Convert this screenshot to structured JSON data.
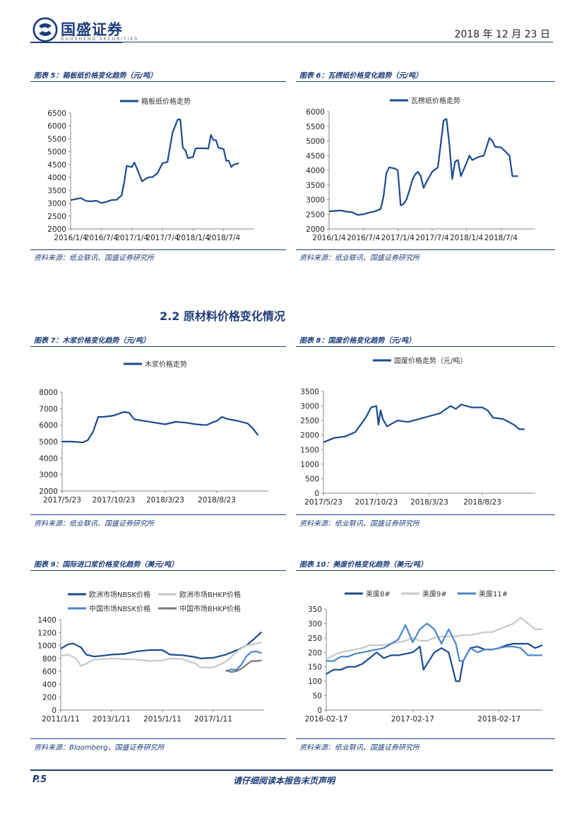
{
  "header": {
    "company": "国盛证券",
    "company_en": "GUOSHENG SECURITIES",
    "date": "2018 年 12 月 23 日"
  },
  "section_title": "2.2 原材料价格变化情况",
  "footer": {
    "page": "P.5",
    "note": "请仔细阅读本报告末页声明"
  },
  "colors": {
    "dark_blue": "#1a4b8f",
    "mid_blue": "#4a86c8",
    "light_gray": "#c8c8c8",
    "dark_gray": "#7a7a7a",
    "brand": "#1f3c7a"
  },
  "chart_data": [
    {
      "id": "c5",
      "type": "line",
      "caption": "图表 5：箱板纸价格变化趋势（元/吨）",
      "source": "资料来源：纸业联讯、国盛证券研究所",
      "ylim": [
        2000,
        6500
      ],
      "yticks": [
        2000,
        2500,
        3000,
        3500,
        4000,
        4500,
        5000,
        5500,
        6000,
        6500
      ],
      "xlim": [
        0,
        36
      ],
      "xtick_labels": [
        "2016/1/4",
        "2016/7/4",
        "2017/1/4",
        "2017/7/4",
        "2018/1/4",
        "2018/7/4"
      ],
      "xtick_pos": [
        0,
        6,
        12,
        18,
        24,
        30
      ],
      "series": [
        {
          "name": "箱板纸价格走势",
          "color": "#1a4b8f",
          "x": [
            0,
            2,
            3,
            4,
            5,
            6,
            7,
            8,
            9,
            10,
            10.5,
            11,
            12,
            12.5,
            13,
            14,
            15,
            15.5,
            16,
            17,
            18,
            19,
            20,
            21,
            21.5,
            22,
            22.5,
            23,
            24,
            24.5,
            25,
            26,
            27,
            27.5,
            28,
            28.5,
            29,
            30,
            30.5,
            31,
            31.5,
            32,
            33
          ],
          "y": [
            3120,
            3200,
            3090,
            3070,
            3100,
            3010,
            3050,
            3120,
            3130,
            3300,
            3800,
            4450,
            4400,
            4580,
            4350,
            3850,
            3980,
            4010,
            4010,
            4150,
            4550,
            4600,
            5750,
            6250,
            6250,
            5150,
            5050,
            4750,
            4790,
            5120,
            5130,
            5130,
            5120,
            5650,
            5450,
            5450,
            5150,
            5100,
            4650,
            4650,
            4400,
            4500,
            4550
          ]
        }
      ]
    },
    {
      "id": "c6",
      "type": "line",
      "caption": "图表 6：瓦楞纸价格变化趋势（元/吨）",
      "source": "资料来源：纸业联讯、国盛证券研究所",
      "ylim": [
        2000,
        6000
      ],
      "yticks": [
        2000,
        2500,
        3000,
        3500,
        4000,
        4500,
        5000,
        5500,
        6000
      ],
      "xlim": [
        0,
        36
      ],
      "xtick_labels": [
        "2016/1/4",
        "2016/7/4",
        "2017/1/4",
        "2017/7/4",
        "2018/1/4",
        "2018/7/4"
      ],
      "xtick_pos": [
        0,
        6,
        12,
        18,
        24,
        30
      ],
      "series": [
        {
          "name": "瓦楞纸价格走势",
          "color": "#1a4b8f",
          "x": [
            0,
            2,
            3,
            4,
            5,
            6,
            7,
            8,
            9,
            9.5,
            10,
            10.5,
            11,
            11.5,
            12,
            12.5,
            13,
            13.5,
            14,
            14.5,
            15,
            15.5,
            16,
            16.5,
            17,
            18,
            19,
            20,
            20.5,
            21,
            21.5,
            22,
            22.5,
            23,
            24,
            24.5,
            25,
            26,
            27,
            28,
            28.5,
            29,
            30,
            31,
            31.5,
            32,
            33
          ],
          "y": [
            2600,
            2630,
            2590,
            2570,
            2480,
            2500,
            2560,
            2600,
            2680,
            3100,
            3900,
            4100,
            4080,
            4060,
            4000,
            2800,
            2850,
            3000,
            3300,
            3650,
            3850,
            3950,
            3800,
            3400,
            3600,
            3950,
            4100,
            5700,
            5750,
            4900,
            3700,
            4300,
            4350,
            3800,
            4250,
            4500,
            4350,
            4450,
            4500,
            5100,
            5000,
            4800,
            4780,
            4600,
            4500,
            3800,
            3800
          ]
        }
      ]
    },
    {
      "id": "c7",
      "type": "line",
      "caption": "图表 7：木浆价格变化趋势（元/吨）",
      "source": "资料来源：纸业联讯、国盛证券研究所",
      "ylim": [
        2000,
        8000
      ],
      "yticks": [
        2000,
        3000,
        4000,
        5000,
        6000,
        7000,
        8000
      ],
      "xlim": [
        0,
        20
      ],
      "xtick_labels": [
        "2017/5/23",
        "2017/10/23",
        "2018/3/23",
        "2018/8/23"
      ],
      "xtick_pos": [
        0,
        5,
        10,
        15
      ],
      "series": [
        {
          "name": "木浆价格走势",
          "color": "#1a4b8f",
          "x": [
            0,
            1,
            2,
            2.5,
            3,
            3.5,
            4,
            5,
            6,
            6.5,
            7,
            8,
            9,
            10,
            11,
            12,
            13,
            14,
            14.5,
            15,
            15.5,
            16,
            17,
            18,
            18.5,
            19
          ],
          "y": [
            5000,
            5000,
            4950,
            5100,
            5600,
            6500,
            6500,
            6580,
            6800,
            6750,
            6350,
            6250,
            6150,
            6050,
            6200,
            6150,
            6050,
            6000,
            6150,
            6250,
            6500,
            6380,
            6260,
            6100,
            5800,
            5380
          ]
        }
      ]
    },
    {
      "id": "c8",
      "type": "line",
      "caption": "图表 8：国废价格变化趋势（元/吨）",
      "source": "资料来源：纸业联讯、国盛证券研究所",
      "ylim": [
        0,
        3500
      ],
      "yticks": [
        0,
        500,
        1000,
        1500,
        2000,
        2500,
        3000,
        3500
      ],
      "xlim": [
        0,
        20
      ],
      "xtick_labels": [
        "2017/5/23",
        "2017/10/23",
        "2018/3/23",
        "2018/8/23"
      ],
      "xtick_pos": [
        0,
        5,
        10,
        15
      ],
      "series": [
        {
          "name": "国废价格走势（元/吨）",
          "color": "#1a4b8f",
          "x": [
            0,
            1,
            2,
            3,
            4,
            4.5,
            5,
            5.2,
            5.4,
            5.6,
            6,
            7,
            8,
            9,
            10,
            11,
            12,
            12.5,
            13,
            14,
            15,
            15.5,
            16,
            17,
            18,
            18.5,
            19
          ],
          "y": [
            1750,
            1900,
            1950,
            2100,
            2600,
            2950,
            3000,
            2350,
            2850,
            2550,
            2300,
            2500,
            2450,
            2550,
            2650,
            2750,
            3000,
            2900,
            3050,
            2950,
            2950,
            2850,
            2600,
            2550,
            2350,
            2200,
            2200
          ]
        }
      ]
    },
    {
      "id": "c9",
      "type": "line",
      "caption": "图表 9：国际进口浆价格变化趋势（美元/吨）",
      "source": "资料来源：Bloomberg、国盛证券研究所",
      "ylim": [
        0,
        1400
      ],
      "yticks": [
        0,
        200,
        400,
        600,
        800,
        1000,
        1200,
        1400
      ],
      "xlim": [
        0,
        8
      ],
      "xtick_labels": [
        "2011/1/11",
        "2013/1/11",
        "2015/1/11",
        "2017/1/11"
      ],
      "xtick_pos": [
        0,
        2,
        4,
        6
      ],
      "series": [
        {
          "name": "欧洲市场NBSK价格",
          "color": "#1a4b8f",
          "x": [
            0,
            0.3,
            0.5,
            0.8,
            1,
            1.3,
            1.6,
            2,
            2.5,
            3,
            3.5,
            4,
            4.3,
            4.8,
            5.3,
            5.5,
            6,
            6.5,
            7,
            7.3,
            7.6,
            7.9
          ],
          "y": [
            950,
            1020,
            1030,
            970,
            860,
            830,
            840,
            860,
            870,
            910,
            930,
            930,
            860,
            850,
            820,
            800,
            810,
            860,
            940,
            1000,
            1100,
            1210
          ]
        },
        {
          "name": "欧洲市场BHKP价格",
          "color": "#c8c8c8",
          "x": [
            0,
            0.3,
            0.6,
            0.8,
            1,
            1.3,
            1.6,
            2,
            2.5,
            3,
            3.5,
            4,
            4.3,
            4.8,
            5.3,
            5.5,
            6,
            6.5,
            7,
            7.3,
            7.6,
            7.9
          ],
          "y": [
            840,
            860,
            800,
            680,
            720,
            780,
            790,
            800,
            790,
            780,
            760,
            770,
            800,
            790,
            720,
            660,
            660,
            750,
            930,
            1000,
            1020,
            1050
          ]
        },
        {
          "name": "中国市场NBSK价格",
          "color": "#4a86c8",
          "x": [
            6.5,
            6.7,
            6.9,
            7.1,
            7.3,
            7.5,
            7.7,
            7.9
          ],
          "y": [
            600,
            630,
            620,
            700,
            830,
            900,
            910,
            880
          ]
        },
        {
          "name": "中国市场BHKP价格",
          "color": "#7a7a7a",
          "x": [
            6.5,
            6.7,
            6.9,
            7.1,
            7.3,
            7.5,
            7.7,
            7.9
          ],
          "y": [
            620,
            590,
            600,
            640,
            700,
            760,
            760,
            770
          ]
        }
      ]
    },
    {
      "id": "c10",
      "type": "line",
      "caption": "图表 10：美废价格变化趋势（美元/吨）",
      "source": "资料来源：纸业联讯、国盛证券研究所",
      "ylim": [
        0,
        350
      ],
      "yticks": [
        0,
        50,
        100,
        150,
        200,
        250,
        300,
        350
      ],
      "xlim": [
        0,
        30
      ],
      "xtick_labels": [
        "2016-02-17",
        "2017-02-17",
        "2018-02-17"
      ],
      "xtick_pos": [
        0,
        12,
        24
      ],
      "series": [
        {
          "name": "美废8#",
          "color": "#1a4b8f",
          "x": [
            0,
            1,
            2,
            3,
            4,
            5,
            6,
            7,
            8,
            9,
            10,
            11,
            12,
            13,
            13.5,
            14,
            15,
            16,
            17,
            17.5,
            18,
            18.5,
            19,
            20,
            21,
            22,
            23,
            24,
            25,
            26,
            27,
            28,
            29,
            30
          ],
          "y": [
            125,
            140,
            140,
            150,
            150,
            160,
            180,
            200,
            180,
            190,
            190,
            195,
            200,
            220,
            140,
            160,
            200,
            215,
            200,
            150,
            100,
            100,
            170,
            215,
            220,
            210,
            210,
            215,
            225,
            230,
            230,
            230,
            215,
            225
          ]
        },
        {
          "name": "美废9#",
          "color": "#c8c8c8",
          "x": [
            0,
            1,
            2,
            3,
            4,
            5,
            6,
            7,
            8,
            9,
            10,
            11,
            12,
            13,
            14,
            15,
            16,
            17,
            18,
            19,
            20,
            21,
            22,
            23,
            24,
            25,
            26,
            27,
            27.5,
            28,
            29,
            30
          ],
          "y": [
            175,
            190,
            200,
            205,
            210,
            215,
            225,
            225,
            225,
            230,
            235,
            240,
            250,
            240,
            240,
            250,
            255,
            255,
            255,
            260,
            260,
            265,
            270,
            270,
            280,
            290,
            300,
            320,
            310,
            300,
            280,
            280
          ]
        },
        {
          "name": "美废11#",
          "color": "#4a86c8",
          "x": [
            0,
            1,
            2,
            3,
            4,
            5,
            6,
            7,
            8,
            9,
            10,
            11,
            12,
            13,
            14,
            15,
            16,
            17,
            18,
            18.5,
            19,
            20,
            21,
            22,
            23,
            24,
            25,
            26,
            27,
            28,
            29,
            30
          ],
          "y": [
            170,
            170,
            185,
            185,
            195,
            200,
            205,
            210,
            215,
            230,
            245,
            295,
            235,
            280,
            300,
            280,
            230,
            280,
            230,
            170,
            170,
            215,
            200,
            210,
            210,
            215,
            220,
            220,
            215,
            190,
            190,
            190
          ]
        }
      ]
    }
  ]
}
